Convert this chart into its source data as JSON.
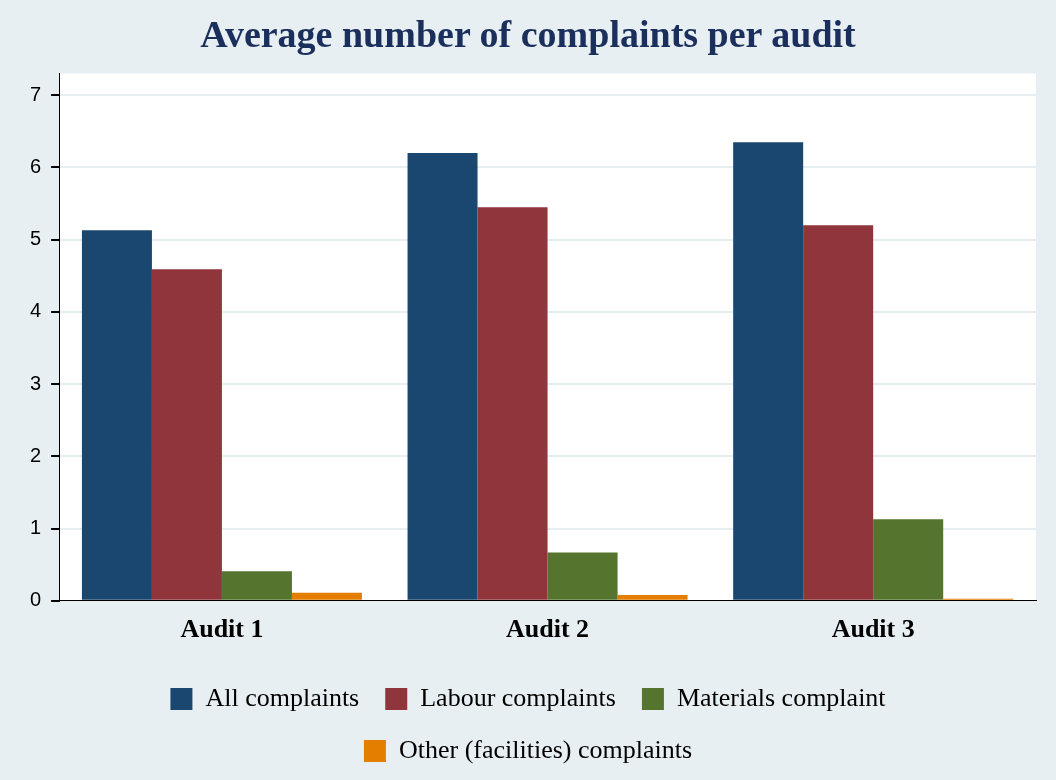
{
  "chart_data": {
    "type": "bar",
    "title": "Average number of complaints per audit",
    "categories": [
      "Audit 1",
      "Audit 2",
      "Audit 3"
    ],
    "series": [
      {
        "name": "All complaints",
        "color": "#1a476f",
        "values": [
          5.13,
          6.2,
          6.35
        ]
      },
      {
        "name": "Labour complaints",
        "color": "#90353b",
        "values": [
          4.59,
          5.45,
          5.2
        ]
      },
      {
        "name": "Materials complaint",
        "color": "#55752f",
        "values": [
          0.41,
          0.67,
          1.13
        ]
      },
      {
        "name": "Other (facilities) complaints",
        "color": "#e37e00",
        "values": [
          0.11,
          0.08,
          0.03
        ]
      }
    ],
    "ylim": [
      0,
      7.3
    ],
    "yticks": [
      0,
      1,
      2,
      3,
      4,
      5,
      6,
      7
    ],
    "grid": "y",
    "legend": "bottom"
  }
}
